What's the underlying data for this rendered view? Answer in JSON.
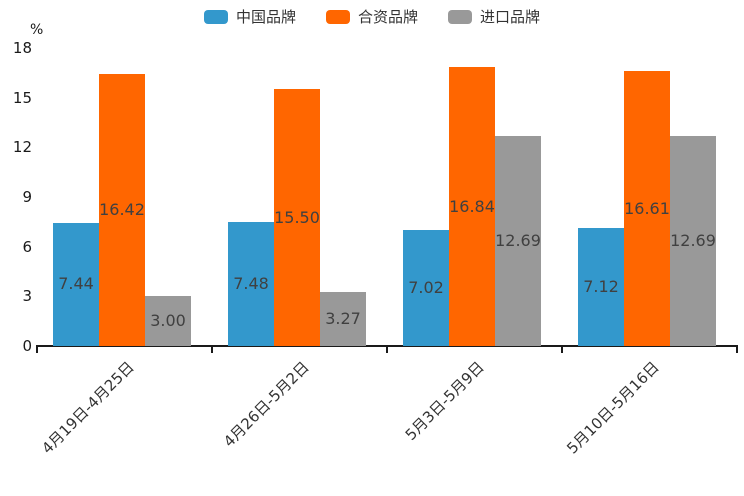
{
  "unit_label": "%",
  "legend": {
    "items": [
      {
        "label": "中国品牌",
        "color": "#3398CC"
      },
      {
        "label": "合资品牌",
        "color": "#FF6600"
      },
      {
        "label": "进口品牌",
        "color": "#999999"
      }
    ]
  },
  "chart_data": {
    "type": "bar",
    "title": "",
    "xlabel": "",
    "ylabel": "%",
    "categories": [
      "4月19日-4月25日",
      "4月26日-5月2日",
      "5月3日-5月9日",
      "5月10日-5月16日"
    ],
    "series": [
      {
        "name": "中国品牌",
        "color": "#3398CC",
        "values": [
          7.44,
          7.48,
          7.02,
          7.12
        ]
      },
      {
        "name": "合资品牌",
        "color": "#FF6600",
        "values": [
          16.42,
          15.5,
          16.84,
          16.61
        ]
      },
      {
        "name": "进口品牌",
        "color": "#999999",
        "values": [
          3.0,
          3.27,
          12.69,
          12.69
        ]
      }
    ],
    "ylim": [
      0,
      18
    ],
    "yticks": [
      0,
      3,
      6,
      9,
      12,
      15,
      18
    ],
    "grid": false,
    "legend_position": "top-center",
    "value_labels": "inside-center",
    "value_label_decimals": 2
  }
}
